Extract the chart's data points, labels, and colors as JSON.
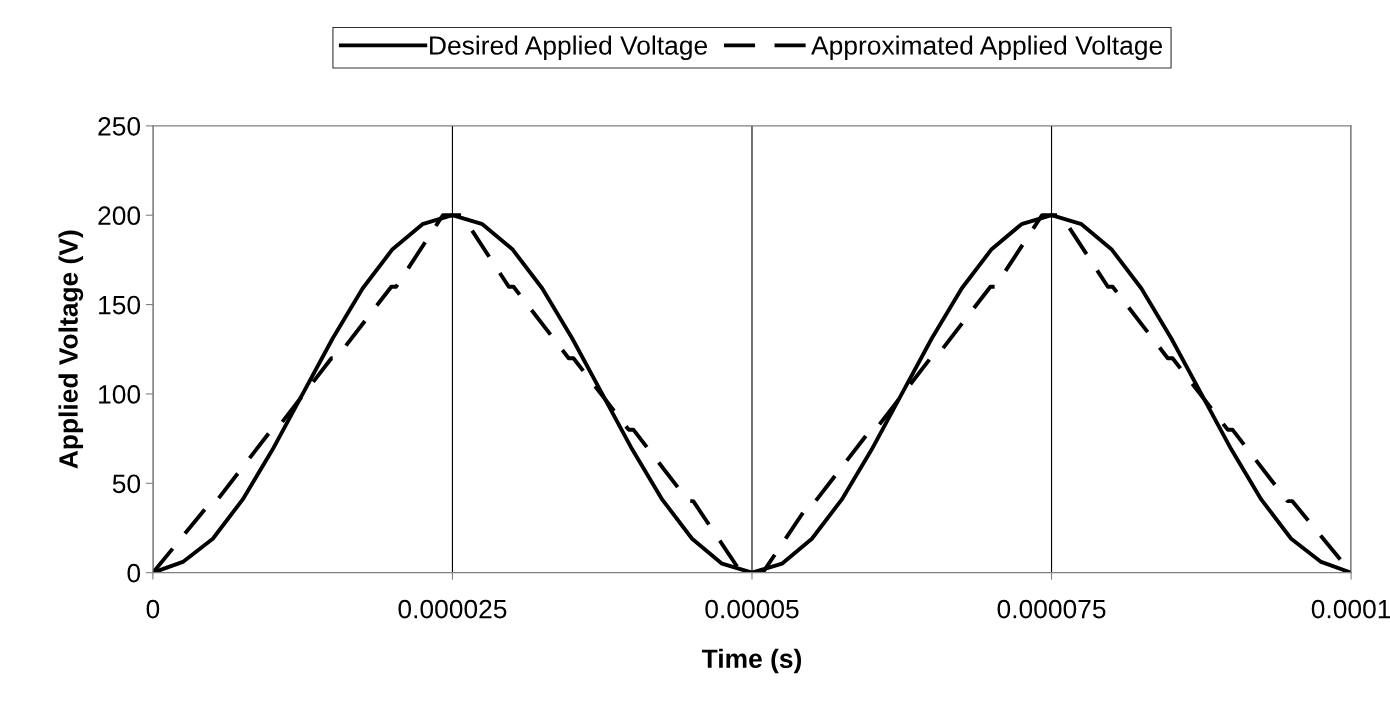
{
  "chart_data": {
    "type": "line",
    "xlabel": "Time (s)",
    "ylabel": "Applied Voltage (V)",
    "xlim": [
      0,
      0.0001
    ],
    "ylim": [
      0,
      250
    ],
    "xticks": [
      0,
      {
        "value": 2.5e-05,
        "label": "0.000025"
      },
      {
        "value": 5e-05,
        "label": "0.00005"
      },
      {
        "value": 7.5e-05,
        "label": "0.000075"
      },
      {
        "value": 0.0001,
        "label": "0.0001"
      }
    ],
    "yticks": [
      0,
      50,
      100,
      150,
      200,
      250
    ],
    "grid": "x",
    "legend": "top",
    "marker": "none",
    "series": [
      {
        "name": "Desired Applied Voltage",
        "color": "#000000",
        "line_style": "solid",
        "x": [
          0,
          2.5e-06,
          5e-06,
          7.5e-06,
          1e-05,
          1.25e-05,
          1.5e-05,
          1.75e-05,
          2e-05,
          2.25e-05,
          2.5e-05,
          2.75e-05,
          3e-05,
          3.25e-05,
          3.5e-05,
          3.75e-05,
          4e-05,
          4.25e-05,
          4.5e-05,
          4.75e-05,
          5e-05,
          5.25e-05,
          5.5e-05,
          5.75e-05,
          6e-05,
          6.25e-05,
          6.5e-05,
          6.75e-05,
          7e-05,
          7.25e-05,
          7.5e-05,
          7.75e-05,
          8e-05,
          8.25e-05,
          8.5e-05,
          8.75e-05,
          9e-05,
          9.25e-05,
          9.5e-05,
          9.75e-05,
          0.0001
        ],
        "values": [
          0,
          6,
          19,
          41,
          69,
          100,
          131,
          159,
          181,
          195,
          200,
          195,
          181,
          159,
          131,
          100,
          69,
          41,
          19,
          5,
          0,
          5,
          19,
          41,
          69,
          100,
          131,
          159,
          181,
          195,
          200,
          195,
          181,
          159,
          131,
          100,
          69,
          41,
          19,
          6,
          0
        ]
      },
      {
        "name": "Approximated Applied Voltage",
        "color": "#000000",
        "line_style": "dashed",
        "x": [
          0,
          4.9e-06,
          5.3e-06,
          9.9e-06,
          1.03e-05,
          1.49e-05,
          1.53e-05,
          1.99e-05,
          2.03e-05,
          2.42e-05,
          2.58e-05,
          2.97e-05,
          3.01e-05,
          3.47e-05,
          3.51e-05,
          3.97e-05,
          4.01e-05,
          4.47e-05,
          4.51e-05,
          4.91e-05,
          5.09e-05,
          5.49e-05,
          5.53e-05,
          5.99e-05,
          6.03e-05,
          6.49e-05,
          6.53e-05,
          6.99e-05,
          7.03e-05,
          7.42e-05,
          7.58e-05,
          7.97e-05,
          8.01e-05,
          8.47e-05,
          8.51e-05,
          8.97e-05,
          9.01e-05,
          9.47e-05,
          9.51e-05,
          0.0001
        ],
        "values": [
          0,
          40,
          40,
          80,
          80,
          120,
          120,
          160,
          160,
          200,
          200,
          160,
          160,
          120,
          120,
          80,
          80,
          40,
          40,
          0,
          0,
          40,
          40,
          80,
          80,
          120,
          120,
          160,
          160,
          200,
          200,
          160,
          160,
          120,
          120,
          80,
          80,
          40,
          40,
          0
        ]
      }
    ]
  }
}
